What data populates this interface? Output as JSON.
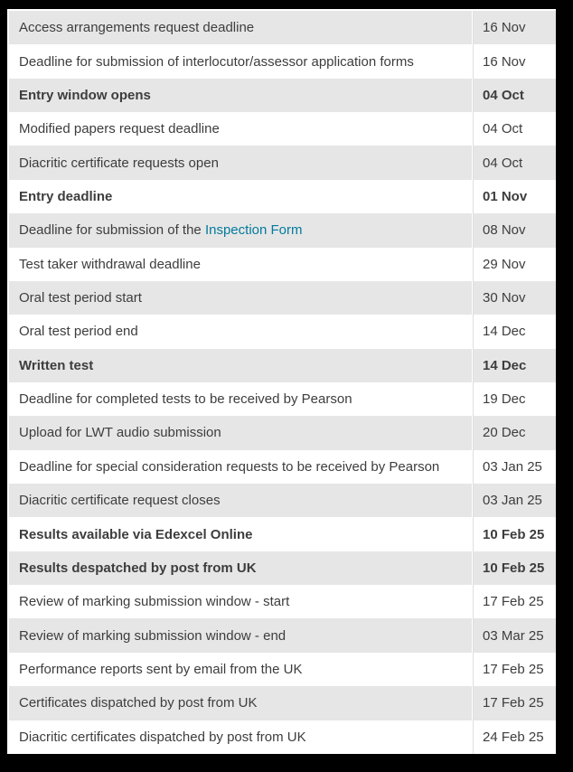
{
  "table": {
    "description": "Key dates and deadlines table",
    "columns": [
      "event",
      "date"
    ],
    "rows": [
      {
        "label": "Access arrangements request deadline",
        "date": "16 Nov",
        "bold": false
      },
      {
        "label": "Deadline for submission of interlocutor/assessor application forms",
        "date": "16 Nov",
        "bold": false
      },
      {
        "label": "Entry window opens",
        "date": "04 Oct",
        "bold": true
      },
      {
        "label": "Modified papers request deadline",
        "date": "04 Oct",
        "bold": false
      },
      {
        "label": "Diacritic certificate requests open",
        "date": "04 Oct",
        "bold": false
      },
      {
        "label": "Entry deadline",
        "date": "01 Nov",
        "bold": true
      },
      {
        "label": "Deadline for submission of the ",
        "link_text": "Inspection Form",
        "date": "08 Nov",
        "bold": false
      },
      {
        "label": "Test taker withdrawal deadline",
        "date": "29 Nov",
        "bold": false
      },
      {
        "label": "Oral test period start",
        "date": "30 Nov",
        "bold": false
      },
      {
        "label": "Oral test period end",
        "date": "14 Dec",
        "bold": false
      },
      {
        "label": "Written test",
        "date": "14 Dec",
        "bold": true
      },
      {
        "label": "Deadline for completed tests to be received by Pearson",
        "date": "19 Dec",
        "bold": false
      },
      {
        "label": "Upload for LWT audio submission",
        "date": "20 Dec",
        "bold": false
      },
      {
        "label": "Deadline for special consideration requests to be received by Pearson",
        "date": "03 Jan 25",
        "bold": false
      },
      {
        "label": "Diacritic certificate request closes",
        "date": "03 Jan 25",
        "bold": false
      },
      {
        "label": "Results available via Edexcel Online",
        "date": "10 Feb 25",
        "bold": true
      },
      {
        "label": "Results despatched by post from UK",
        "date": "10 Feb 25",
        "bold": true
      },
      {
        "label": "Review of marking submission window - start",
        "date": "17 Feb 25",
        "bold": false
      },
      {
        "label": "Review of marking submission window - end",
        "date": "03 Mar 25",
        "bold": false
      },
      {
        "label": "Performance reports sent by email from the UK",
        "date": "17 Feb 25",
        "bold": false
      },
      {
        "label": "Certificates dispatched by post from UK",
        "date": "17 Feb 25",
        "bold": false
      },
      {
        "label": "Diacritic certificates dispatched by post from UK",
        "date": "24 Feb 25",
        "bold": false
      }
    ],
    "colors": {
      "frame": "#000000",
      "row_bg": "#ffffff",
      "row_alt_bg": "#e6e6e6",
      "text": "#3d3d3d",
      "link": "#047a9c"
    }
  }
}
